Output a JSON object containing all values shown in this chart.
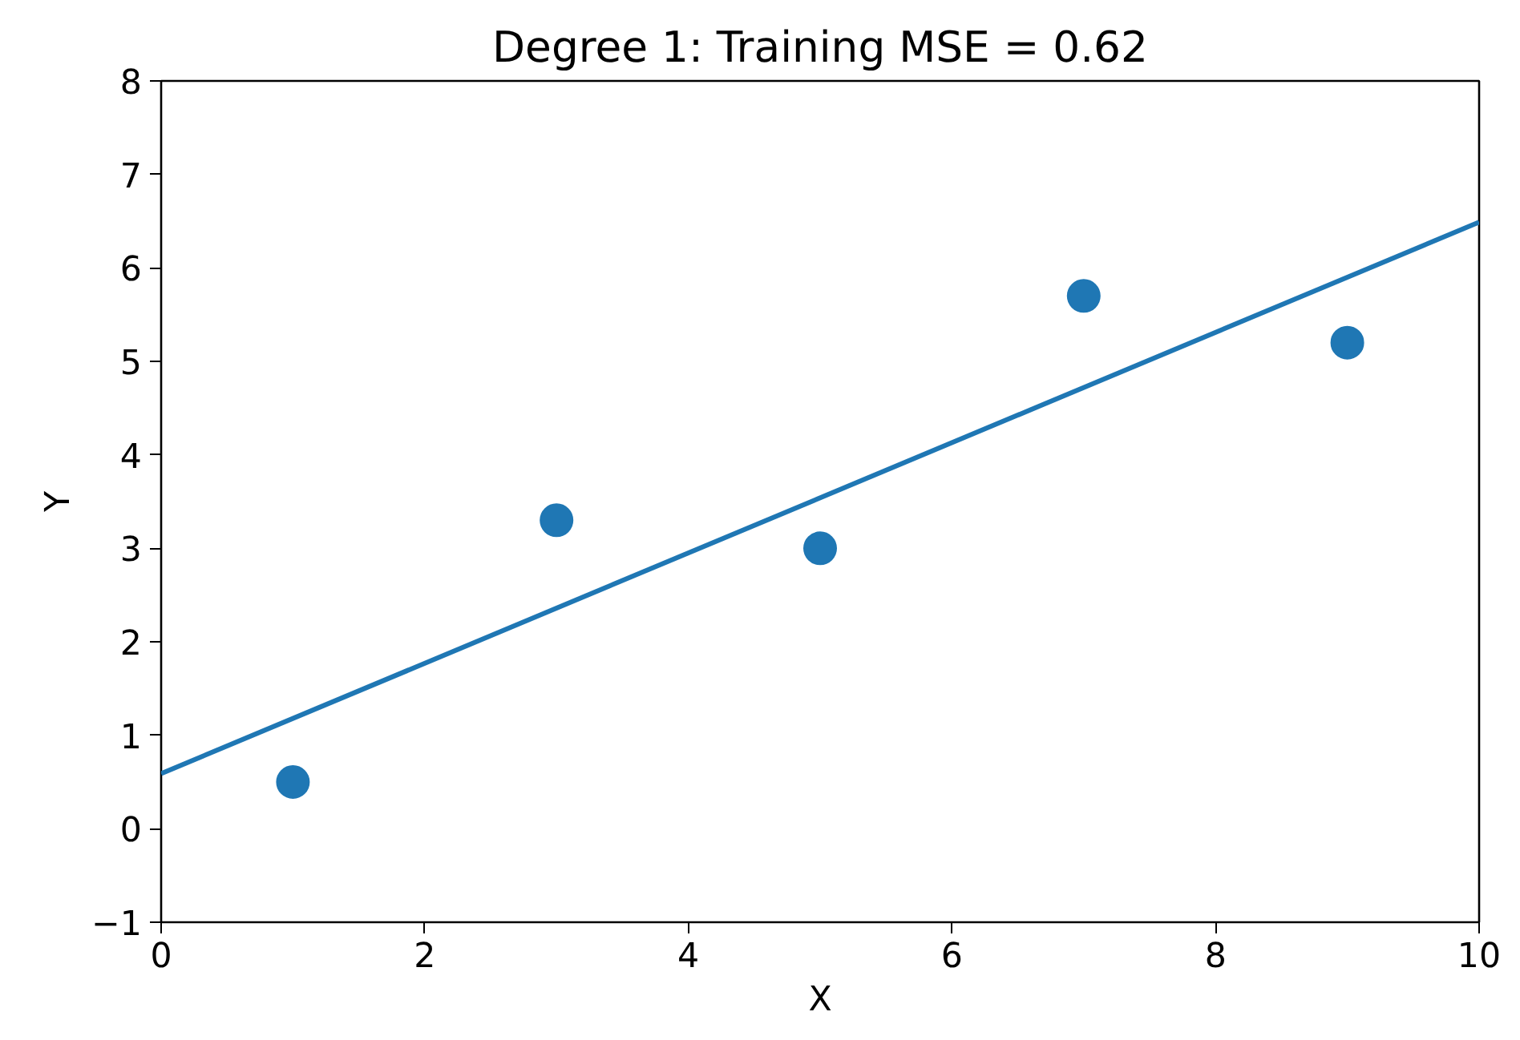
{
  "chart_data": {
    "type": "scatter",
    "title": "Degree 1: Training MSE = 0.62",
    "xlabel": "X",
    "ylabel": "Y",
    "series": [
      {
        "color": "#1f77b4",
        "x": [
          1,
          3,
          5,
          7,
          9
        ],
        "values": [
          0.5,
          3.3,
          3.0,
          5.7,
          5.2
        ],
        "marker": "circle"
      },
      {
        "type": "line",
        "color": "#1f77b4",
        "x": [
          0,
          10
        ],
        "values": [
          0.59,
          6.49
        ],
        "line_style": "solid"
      }
    ],
    "xlim": [
      0,
      10
    ],
    "ylim": [
      -1,
      8
    ],
    "xticks": [
      0,
      2,
      4,
      6,
      8,
      10
    ],
    "yticks": [
      {
        "value": -1,
        "label": "−1"
      },
      0,
      1,
      2,
      3,
      4,
      5,
      6,
      7,
      8
    ],
    "grid": false
  }
}
